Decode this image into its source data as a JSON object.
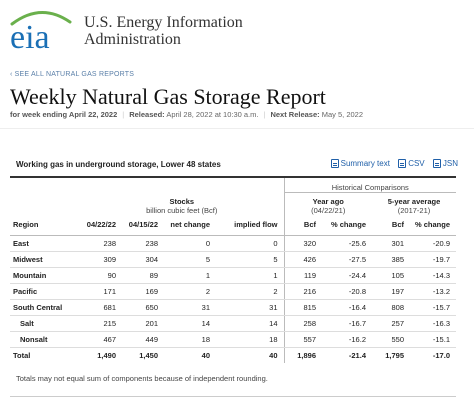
{
  "header": {
    "logo_text": "eia",
    "org_line1": "U.S. Energy Information",
    "org_line2": "Administration"
  },
  "nav": {
    "see_all": "‹ SEE ALL NATURAL GAS REPORTS"
  },
  "page": {
    "title": "Weekly Natural Gas Storage Report",
    "week": "for week ending April 22, 2022",
    "released_label": "Released:",
    "released": "April 28, 2022 at 10:30 a.m.",
    "next_label": "Next Release:",
    "next": "May 5, 2022"
  },
  "table": {
    "caption": "Working gas in underground storage, Lower 48 states",
    "links": [
      "Summary text",
      "CSV",
      "JSN"
    ],
    "historical": "Historical Comparisons",
    "stocks": "Stocks",
    "stocks_unit": "billion cubic feet (Bcf)",
    "yearago": "Year ago",
    "yearago_date": "(04/22/21)",
    "fiveyr": "5-year average",
    "fiveyr_range": "(2017-21)",
    "columns": [
      "Region",
      "04/22/22",
      "04/15/22",
      "net change",
      "implied flow",
      "Bcf",
      "% change",
      "Bcf",
      "% change"
    ],
    "rows": [
      [
        "East",
        "238",
        "238",
        "0",
        "0",
        "320",
        "-25.6",
        "301",
        "-20.9"
      ],
      [
        "Midwest",
        "309",
        "304",
        "5",
        "5",
        "426",
        "-27.5",
        "385",
        "-19.7"
      ],
      [
        "Mountain",
        "90",
        "89",
        "1",
        "1",
        "119",
        "-24.4",
        "105",
        "-14.3"
      ],
      [
        "Pacific",
        "171",
        "169",
        "2",
        "2",
        "216",
        "-20.8",
        "197",
        "-13.2"
      ],
      [
        "South Central",
        "681",
        "650",
        "31",
        "31",
        "815",
        "-16.4",
        "808",
        "-15.7"
      ],
      [
        "Salt",
        "215",
        "201",
        "14",
        "14",
        "258",
        "-16.7",
        "257",
        "-16.3"
      ],
      [
        "Nonsalt",
        "467",
        "449",
        "18",
        "18",
        "557",
        "-16.2",
        "550",
        "-15.1"
      ]
    ],
    "total": [
      "Total",
      "1,490",
      "1,450",
      "40",
      "40",
      "1,896",
      "-21.4",
      "1,795",
      "-17.0"
    ],
    "note": "Totals may not equal sum of components because of independent rounding."
  },
  "colors": {
    "link": "#1f5fa8",
    "logo_blue": "#1a6fb5",
    "logo_green": "#6ab04c"
  }
}
